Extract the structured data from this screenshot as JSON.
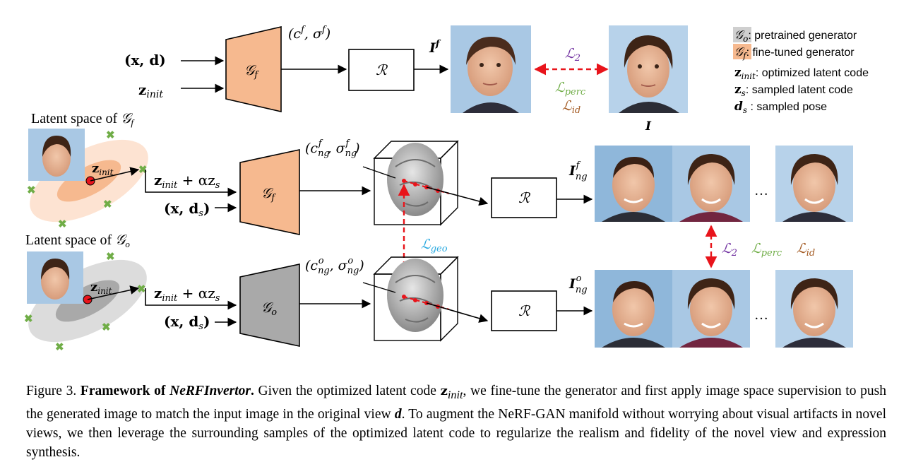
{
  "figure": {
    "top_inputs": {
      "x_d": "(x, d)",
      "z_init": "z",
      "z_init_sub": "init"
    },
    "top_generator": {
      "symbol": "𝒢",
      "sub": "f"
    },
    "top_output": "(c",
    "top_output_cf_sup": "f",
    "top_output_sep": ", σ",
    "top_output_sf_sup": "f",
    "top_output_close": ")",
    "renderer_symbol": "ℛ",
    "I_f": "I",
    "I_f_sup": "f",
    "I_label": "I",
    "loss_L2": "ℒ",
    "loss_L2_sub": "2",
    "loss_perc": "ℒ",
    "loss_perc_sub": "perc",
    "loss_id": "ℒ",
    "loss_id_sub": "id",
    "legend": [
      {
        "sym": "𝒢",
        "sub": "o",
        "text": ": pretrained generator",
        "box": "#cfcfcf"
      },
      {
        "sym": "𝒢",
        "sub": "f",
        "text": ": fine-tuned generator",
        "box": "#f6b98f"
      },
      {
        "sym": "z",
        "sub": "init",
        "text": ": optimized latent code",
        "box": ""
      },
      {
        "sym": "z",
        "sub": "s",
        "text": ": sampled latent code",
        "box": ""
      },
      {
        "sym": "d",
        "sub": "s",
        "text": " : sampled pose",
        "box": ""
      }
    ],
    "latent_f_title": "Latent space of ",
    "latent_f_sym": "𝒢",
    "latent_f_sub": "f",
    "latent_o_title": "Latent space of ",
    "latent_o_sym": "𝒢",
    "latent_o_sub": "o",
    "latent_zinit": "z",
    "latent_zinit_sub": "init",
    "mid_input_a": "z",
    "mid_input_a_sub": "init",
    "mid_input_a_rest": " + αz",
    "mid_input_a_sub2": "s",
    "mid_input_b": "(x, d",
    "mid_input_b_sub": "s",
    "mid_input_b_close": ")",
    "gen_f_sym": "𝒢",
    "gen_f_sub": "f",
    "gen_o_sym": "𝒢",
    "gen_o_sub": "o",
    "ng_f_label": "(c",
    "ng_f_c_sub": "ng",
    "ng_f_c_sup": "f",
    "ng_f_sep": ", σ",
    "ng_f_s_sub": "ng",
    "ng_f_s_sup": "f",
    "ng_f_close": ")",
    "ng_o_label": "(c",
    "ng_o_c_sub": "ng",
    "ng_o_c_sup": "o",
    "ng_o_sep": ", σ",
    "ng_o_s_sub": "ng",
    "ng_o_s_sup": "o",
    "ng_o_close": ")",
    "loss_geo": "ℒ",
    "loss_geo_sub": "geo",
    "I_ng_f": "I",
    "I_ng_f_sub": "ng",
    "I_ng_f_sup": "f",
    "I_ng_o": "I",
    "I_ng_o_sub": "ng",
    "I_ng_o_sup": "o",
    "ellipsis": "…",
    "colors": {
      "orange": "#f6b98f",
      "orange_light": "#fde3d2",
      "gray": "#c8c8c8",
      "gray_dark": "#a9a9a9",
      "red": "#e8141b",
      "purple": "#7030a0",
      "green": "#70ad47",
      "brown": "#a35a22",
      "blue": "#29a9e0"
    }
  },
  "caption": {
    "prefix": "Figure 3. ",
    "bold": "Framework of ",
    "bold_italic": "NeRFInvertor",
    "bold_end": ".",
    "t1": " Given the optimized latent code ",
    "z": "z",
    "z_sub": "init",
    "t2": ", we fine-tune the generator and first apply image space supervision to push the generated image to match the input image in the original view ",
    "d": "d",
    "t3": ". To augment the NeRF-GAN manifold without worrying about visual artifacts in novel views, we then leverage the surrounding samples of the optimized latent code to regularize the realism and fidelity of the novel view and expression synthesis."
  }
}
